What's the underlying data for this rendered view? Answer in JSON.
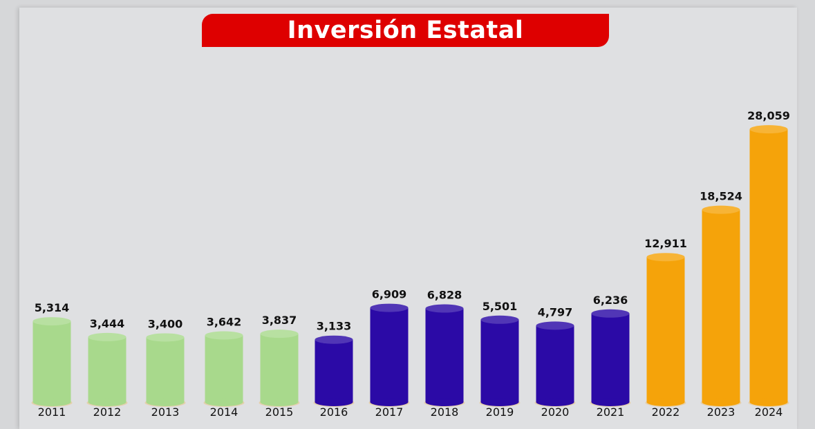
{
  "chart_data": {
    "type": "bar",
    "title": "Inversión Estatal",
    "categories": [
      "2011",
      "2012",
      "2013",
      "2014",
      "2015",
      "2016",
      "2017",
      "2018",
      "2019",
      "2020",
      "2021",
      "2022",
      "2023",
      "2024"
    ],
    "values": [
      5314,
      3444,
      3400,
      3642,
      3837,
      3133,
      6909,
      6828,
      5501,
      4797,
      6236,
      12911,
      18524,
      28059
    ],
    "value_labels": [
      "5,314",
      "3,444",
      "3,400",
      "3,642",
      "3,837",
      "3,133",
      "6,909",
      "6,828",
      "5,501",
      "4,797",
      "6,236",
      "12,911",
      "18,524",
      "28,059"
    ],
    "bar_style": "cylinder",
    "colors": {
      "2011-2015": "#a8d98c",
      "2016-2021": "#2b0aa6",
      "2022-2024": "#f5a30a",
      "title_background": "#de0000"
    },
    "bar_colors": [
      "#a8d98c",
      "#a8d98c",
      "#a8d98c",
      "#a8d98c",
      "#a8d98c",
      "#2b0aa6",
      "#2b0aa6",
      "#2b0aa6",
      "#2b0aa6",
      "#2b0aa6",
      "#2b0aa6",
      "#f5a30a",
      "#f5a30a",
      "#f5a30a"
    ],
    "grid": false,
    "xlabel": "",
    "ylabel": ""
  }
}
